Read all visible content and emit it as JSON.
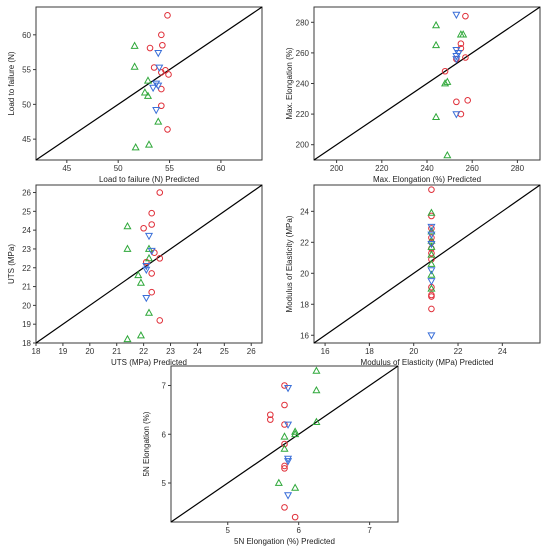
{
  "colors": {
    "circle": "#e0303a",
    "triangle_up": "#2fa83a",
    "triangle_down": "#3a6fd8"
  },
  "chart_data": [
    {
      "type": "scatter",
      "xlabel": "Load to failure (N) Predicted",
      "ylabel": "Load to failure (N)",
      "xlim": [
        42,
        64
      ],
      "ylim": [
        42,
        64
      ],
      "xticks": [
        45,
        50,
        55,
        60
      ],
      "yticks": [
        45,
        50,
        55,
        60
      ],
      "series": [
        {
          "marker": "circle",
          "points": [
            [
              54.8,
              62.8
            ],
            [
              54.2,
              60
            ],
            [
              54.3,
              58.5
            ],
            [
              53.1,
              58.1
            ],
            [
              53.5,
              55.3
            ],
            [
              54.6,
              54.9
            ],
            [
              54.2,
              54.6
            ],
            [
              54.9,
              54.3
            ],
            [
              54.2,
              52.2
            ],
            [
              54.2,
              49.8
            ],
            [
              54.8,
              46.4
            ]
          ]
        },
        {
          "marker": "triangle_up",
          "points": [
            [
              51.6,
              58.4
            ],
            [
              51.6,
              55.4
            ],
            [
              52.9,
              53.4
            ],
            [
              52.6,
              51.7
            ],
            [
              52.9,
              51.2
            ],
            [
              53.9,
              47.5
            ],
            [
              53,
              44.2
            ],
            [
              51.7,
              43.8
            ]
          ]
        },
        {
          "marker": "triangle_down",
          "points": [
            [
              53.9,
              57.4
            ],
            [
              54,
              55.3
            ],
            [
              53.7,
              53
            ],
            [
              53.9,
              52.7
            ],
            [
              53.4,
              52.4
            ],
            [
              53.7,
              49.2
            ]
          ]
        }
      ]
    },
    {
      "type": "scatter",
      "xlabel": "Max. Elongation (%) Predicted",
      "ylabel": "Max. Elongation (%)",
      "xlim": [
        190,
        290
      ],
      "ylim": [
        190,
        290
      ],
      "xticks": [
        200,
        220,
        240,
        260,
        280
      ],
      "yticks": [
        200,
        220,
        240,
        260,
        280
      ],
      "series": [
        {
          "marker": "circle",
          "points": [
            [
              257,
              284
            ],
            [
              255,
              266
            ],
            [
              255,
              263
            ],
            [
              257,
              257
            ],
            [
              253,
              256
            ],
            [
              248,
              248
            ],
            [
              258,
              229
            ],
            [
              253,
              228
            ],
            [
              255,
              220
            ]
          ]
        },
        {
          "marker": "triangle_up",
          "points": [
            [
              244,
              278
            ],
            [
              244,
              265
            ],
            [
              255,
              272
            ],
            [
              256,
              272
            ],
            [
              249,
              241
            ],
            [
              248,
              240
            ],
            [
              244,
              218
            ],
            [
              249,
              193
            ]
          ]
        },
        {
          "marker": "triangle_down",
          "points": [
            [
              253,
              285
            ],
            [
              253,
              262
            ],
            [
              254,
              260
            ],
            [
              253,
              258
            ],
            [
              253,
              256
            ],
            [
              253,
              220
            ]
          ]
        }
      ]
    },
    {
      "type": "scatter",
      "xlabel": "UTS (MPa) Predicted",
      "ylabel": "UTS (MPa)",
      "xlim": [
        18,
        26.4
      ],
      "ylim": [
        18,
        26.4
      ],
      "xticks": [
        18,
        19,
        20,
        21,
        22,
        23,
        24,
        25,
        26
      ],
      "yticks": [
        18,
        19,
        20,
        21,
        22,
        23,
        24,
        25,
        26
      ],
      "series": [
        {
          "marker": "circle",
          "points": [
            [
              22.6,
              26
            ],
            [
              22.3,
              24.9
            ],
            [
              22.3,
              24.3
            ],
            [
              22,
              24.1
            ],
            [
              22.4,
              22.8
            ],
            [
              22.1,
              22.3
            ],
            [
              22.6,
              22.5
            ],
            [
              22.3,
              21.7
            ],
            [
              22.3,
              20.7
            ],
            [
              22.6,
              19.2
            ]
          ]
        },
        {
          "marker": "triangle_up",
          "points": [
            [
              21.4,
              24.2
            ],
            [
              21.4,
              23
            ],
            [
              22.2,
              23
            ],
            [
              22.2,
              22.5
            ],
            [
              21.8,
              21.6
            ],
            [
              21.9,
              21.2
            ],
            [
              22.2,
              19.6
            ],
            [
              21.9,
              18.4
            ],
            [
              21.4,
              18.2
            ]
          ]
        },
        {
          "marker": "triangle_down",
          "points": [
            [
              22.2,
              23.7
            ],
            [
              22.3,
              22.9
            ],
            [
              22.1,
              22.1
            ],
            [
              22.1,
              21.9
            ],
            [
              22.1,
              20.4
            ]
          ]
        }
      ]
    },
    {
      "type": "scatter",
      "xlabel": "Modulus of Elasticity (MPa) Predicted",
      "ylabel": "Modulus of Elasticity (MPa)",
      "xlim": [
        15.5,
        25.7
      ],
      "ylim": [
        15.5,
        25.7
      ],
      "xticks": [
        16,
        18,
        20,
        22,
        24
      ],
      "yticks": [
        16,
        18,
        20,
        22,
        24
      ],
      "series": [
        {
          "marker": "circle",
          "points": [
            [
              20.8,
              25.4
            ],
            [
              20.8,
              23.7
            ],
            [
              20.8,
              22.9
            ],
            [
              20.8,
              22.3
            ],
            [
              20.8,
              22
            ],
            [
              20.8,
              21.6
            ],
            [
              20.8,
              21.3
            ],
            [
              20.8,
              20.9
            ],
            [
              20.8,
              19.1
            ],
            [
              20.8,
              18.6
            ],
            [
              20.8,
              18.5
            ],
            [
              20.8,
              17.7
            ]
          ]
        },
        {
          "marker": "triangle_up",
          "points": [
            [
              20.8,
              23.9
            ],
            [
              20.8,
              22.7
            ],
            [
              20.8,
              22.1
            ],
            [
              20.8,
              21.7
            ],
            [
              20.8,
              21.2
            ],
            [
              20.8,
              20.6
            ],
            [
              20.8,
              19.9
            ],
            [
              20.8,
              19
            ]
          ]
        },
        {
          "marker": "triangle_down",
          "points": [
            [
              20.8,
              23
            ],
            [
              20.8,
              22.5
            ],
            [
              20.8,
              21.9
            ],
            [
              20.8,
              20.2
            ],
            [
              20.8,
              19.5
            ],
            [
              20.8,
              16
            ]
          ]
        }
      ]
    },
    {
      "type": "scatter",
      "xlabel": "5N Elongation (%) Predicted",
      "ylabel": "5N Elongation (%)",
      "xlim": [
        4.2,
        7.4
      ],
      "ylim": [
        4.2,
        7.4
      ],
      "xticks": [
        5,
        6,
        7
      ],
      "yticks": [
        5,
        6,
        7
      ],
      "series": [
        {
          "marker": "circle",
          "points": [
            [
              5.8,
              7
            ],
            [
              5.8,
              6.6
            ],
            [
              5.6,
              6.4
            ],
            [
              5.6,
              6.3
            ],
            [
              5.8,
              6.2
            ],
            [
              5.8,
              5.8
            ],
            [
              5.8,
              5.35
            ],
            [
              5.8,
              5.3
            ],
            [
              5.8,
              4.5
            ],
            [
              5.95,
              4.3
            ]
          ]
        },
        {
          "marker": "triangle_up",
          "points": [
            [
              6.25,
              7.3
            ],
            [
              6.25,
              6.9
            ],
            [
              6.25,
              6.25
            ],
            [
              5.95,
              6.05
            ],
            [
              5.95,
              6
            ],
            [
              5.8,
              5.95
            ],
            [
              5.8,
              5.7
            ],
            [
              5.72,
              5
            ],
            [
              5.95,
              4.9
            ]
          ]
        },
        {
          "marker": "triangle_down",
          "points": [
            [
              5.85,
              6.95
            ],
            [
              5.85,
              6.2
            ],
            [
              5.85,
              5.5
            ],
            [
              5.85,
              5.45
            ],
            [
              5.85,
              4.75
            ]
          ]
        }
      ]
    }
  ]
}
